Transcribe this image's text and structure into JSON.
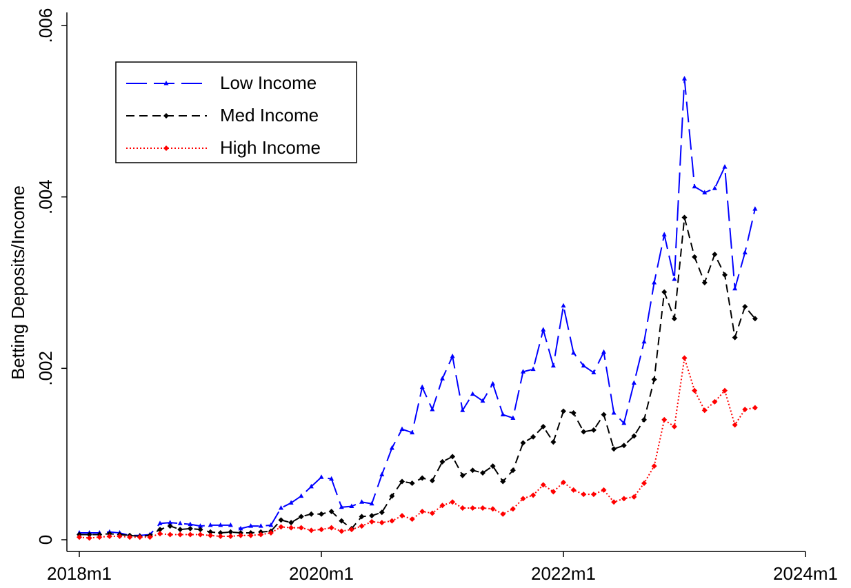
{
  "chart_data": {
    "type": "line",
    "ylabel": "Betting Deposits/Income",
    "x": [
      "2018m1",
      "2018m2",
      "2018m3",
      "2018m4",
      "2018m5",
      "2018m6",
      "2018m7",
      "2018m8",
      "2018m9",
      "2018m10",
      "2018m11",
      "2018m12",
      "2019m1",
      "2019m2",
      "2019m3",
      "2019m4",
      "2019m5",
      "2019m6",
      "2019m7",
      "2019m8",
      "2019m9",
      "2019m10",
      "2019m11",
      "2019m12",
      "2020m1",
      "2020m2",
      "2020m3",
      "2020m4",
      "2020m5",
      "2020m6",
      "2020m7",
      "2020m8",
      "2020m9",
      "2020m10",
      "2020m11",
      "2020m12",
      "2021m1",
      "2021m2",
      "2021m3",
      "2021m4",
      "2021m5",
      "2021m6",
      "2021m7",
      "2021m8",
      "2021m9",
      "2021m10",
      "2021m11",
      "2021m12",
      "2022m1",
      "2022m2",
      "2022m3",
      "2022m4",
      "2022m5",
      "2022m6",
      "2022m7",
      "2022m8",
      "2022m9",
      "2022m10",
      "2022m11",
      "2022m12",
      "2023m1",
      "2023m2",
      "2023m3",
      "2023m4",
      "2023m5",
      "2023m6",
      "2023m7",
      "2023m8"
    ],
    "series": [
      {
        "name": "Low Income",
        "color": "#0000ff",
        "values": [
          8e-05,
          8e-05,
          8e-05,
          9e-05,
          8e-05,
          5e-05,
          5e-05,
          6e-05,
          0.00019,
          0.0002,
          0.00019,
          0.00018,
          0.00016,
          0.00017,
          0.00017,
          0.00017,
          0.00013,
          0.00016,
          0.00016,
          0.00017,
          0.00037,
          0.00043,
          0.00051,
          0.00062,
          0.00073,
          0.00071,
          0.00038,
          0.00039,
          0.00044,
          0.00042,
          0.00076,
          0.00107,
          0.00129,
          0.00125,
          0.00178,
          0.00152,
          0.00188,
          0.00214,
          0.00151,
          0.0017,
          0.00162,
          0.00182,
          0.00146,
          0.00142,
          0.00196,
          0.00199,
          0.00245,
          0.00203,
          0.00273,
          0.00218,
          0.00203,
          0.00195,
          0.00219,
          0.00148,
          0.00136,
          0.00183,
          0.00231,
          0.003,
          0.00356,
          0.00304,
          0.00538,
          0.00412,
          0.00405,
          0.0041,
          0.00435,
          0.00293,
          0.00335,
          0.00386
        ]
      },
      {
        "name": "Med Income",
        "color": "#000000",
        "values": [
          6e-05,
          6e-05,
          6e-05,
          7e-05,
          6e-05,
          5e-05,
          4e-05,
          5e-05,
          0.00012,
          0.00016,
          0.00012,
          0.00013,
          0.00012,
          9e-05,
          8e-05,
          9e-05,
          8e-05,
          8e-05,
          9e-05,
          0.0001,
          0.00023,
          0.0002,
          0.00027,
          0.0003,
          0.0003,
          0.00033,
          0.00022,
          0.00013,
          0.00027,
          0.00028,
          0.00032,
          0.00051,
          0.00068,
          0.00066,
          0.00072,
          0.00069,
          0.00091,
          0.00097,
          0.00075,
          0.00081,
          0.00078,
          0.00086,
          0.00068,
          0.00081,
          0.00113,
          0.0012,
          0.00132,
          0.00114,
          0.0015,
          0.00148,
          0.00126,
          0.00128,
          0.00146,
          0.00106,
          0.0011,
          0.00121,
          0.0014,
          0.00187,
          0.00289,
          0.00258,
          0.00376,
          0.0033,
          0.003,
          0.00333,
          0.00309,
          0.00236,
          0.00272,
          0.00258
        ]
      },
      {
        "name": "High Income",
        "color": "#ff0000",
        "values": [
          3e-05,
          2e-05,
          3e-05,
          4e-05,
          4e-05,
          3e-05,
          3e-05,
          3e-05,
          7e-05,
          6e-05,
          6e-05,
          6e-05,
          6e-05,
          5e-05,
          4e-05,
          4e-05,
          5e-05,
          5e-05,
          6e-05,
          8e-05,
          0.00015,
          0.00014,
          0.00014,
          0.00011,
          0.00012,
          0.00014,
          0.0001,
          0.00012,
          0.00016,
          0.00021,
          0.0002,
          0.00022,
          0.00028,
          0.00024,
          0.00033,
          0.00031,
          0.0004,
          0.00044,
          0.00037,
          0.00037,
          0.00037,
          0.00036,
          0.0003,
          0.00036,
          0.00048,
          0.00052,
          0.00064,
          0.00056,
          0.00067,
          0.00058,
          0.00053,
          0.00053,
          0.00058,
          0.00044,
          0.00048,
          0.0005,
          0.00066,
          0.00086,
          0.0014,
          0.00132,
          0.00212,
          0.00174,
          0.00151,
          0.00161,
          0.00174,
          0.00134,
          0.00152,
          0.00154
        ]
      }
    ],
    "xlim": [
      "2018m1",
      "2024m1"
    ],
    "xticks": [
      "2018m1",
      "2020m1",
      "2022m1",
      "2024m1"
    ],
    "ylim": [
      0,
      0.006
    ],
    "yticks": [
      0,
      {
        "value": 0.002,
        "label": ".002"
      },
      {
        "value": 0.004,
        "label": ".004"
      },
      {
        "value": 0.006,
        "label": ".006"
      }
    ],
    "grid": false,
    "legend": "upper left"
  }
}
